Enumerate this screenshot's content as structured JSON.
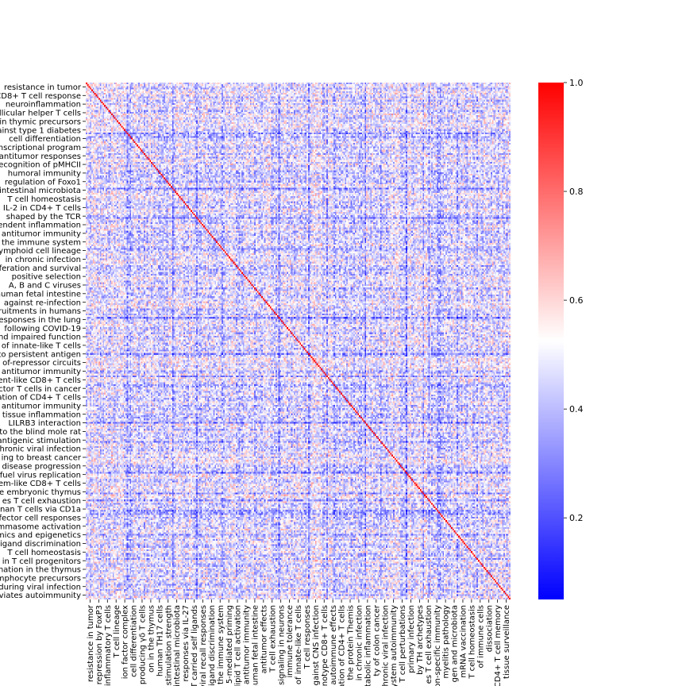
{
  "chart_data": {
    "type": "heatmap",
    "title": "",
    "xlabel": "",
    "ylabel": "",
    "matrix_size": 300,
    "value_range": [
      0.05,
      1.0
    ],
    "diagonal_value": 1.0,
    "colormap": "bwr",
    "colormap_stops": [
      "#0000ff",
      "#ffffff",
      "#ff0000"
    ],
    "colorbar": {
      "range": [
        0.05,
        1.0
      ],
      "ticks": [
        0.2,
        0.4,
        0.6,
        0.8,
        1.0
      ],
      "tick_labels": [
        "0.2",
        "0.4",
        "0.6",
        "0.8",
        "1.0"
      ]
    },
    "row_labels": [
      "resistance in tumor",
      "CD8+ T cell response",
      "neuroinflammation",
      "follicular helper T cells",
      "in thymic precursors",
      "against type 1 diabetes",
      "cell differentiation",
      "transcriptional program",
      "antitumor responses",
      "recognition of pMHCII",
      "humoral immunity",
      "regulation of Foxo1",
      "intestinal microbiota",
      "T cell homeostasis",
      "IL-2 in CD4+ T cells",
      "shaped by the TCR",
      "dependent inflammation",
      "antitumor immunity",
      "the immune system",
      "lymphoid cell lineage",
      "in chronic infection",
      "proliferation and survival",
      "positive selection",
      "A, B and C viruses",
      "human fetal intestine",
      "against re-infection",
      "recruitments in humans",
      "responses in the lung",
      "following COVID-19",
      "and impaired function",
      "of innate-like T cells",
      "to persistent antigen",
      "of-repressor circuits",
      "antitumor immunity",
      "ent-like CD8+ T cells",
      "ctor T cells in cancer",
      "ation of CD4+ T cells",
      "antitumor immunity",
      "tissue inflammation",
      "LILRB3 interaction",
      "to the blind mole rat",
      "antigenic stimulation",
      "chronic viral infection",
      "ing to breast cancer",
      "disease progression",
      "fuel virus replication",
      "em-like CD8+ T cells",
      "e embryonic thymus",
      "es T cell exhaustion",
      "nan T cells via CD1a",
      "ffector cell responses",
      "inflammasome activation",
      "mics and epigenetics",
      "ligand discrimination",
      "T cell homeostasis",
      "in T cell progenitors",
      "mation in the thymus",
      "lymphocyte precursors",
      "during viral infection",
      "deviates autoimmunity"
    ],
    "col_labels": [
      "resistance in tumor",
      "repression by FoxP3",
      "inflammatory T cells",
      "T cell lineage",
      "ion factor complex",
      "cell differentiation",
      "producing γδ T cells",
      "on in the thymus",
      "human TH17 cells",
      "stimulation strength",
      "intestinal microbiota",
      "responses via IL-27",
      "T carried self ligands",
      "viral recall responses",
      "ligand discrimination",
      "the immune system",
      "5-mediated priming",
      "lipid T cell activation",
      "antitumor immunity",
      "human fetal intestine",
      "antitumor effects",
      "T cell exhaustion",
      "signaling in neurons",
      "immune tolerance",
      "of innate-like T cells",
      "T cell responses",
      "against CNS infection",
      "notype CD8+ T cells",
      "autoimmune effects",
      "ation of CD4+ T cells",
      "the protein Themis",
      "in chronic infection",
      "metabolic inflammation",
      "ty of colon cancer",
      "chronic viral infection",
      "system autoimmunity",
      "T cell perturbations",
      "primary infection",
      "by TH archetypes",
      "es T cell exhaustion",
      "non-specific immunity",
      "myelitis pathology",
      "gen and microbiota",
      "mRNA vaccination",
      "T cell homeostasis",
      "of immune cells",
      "dissociation",
      "CD4+ T cell memory",
      "tissue surveillance"
    ]
  }
}
